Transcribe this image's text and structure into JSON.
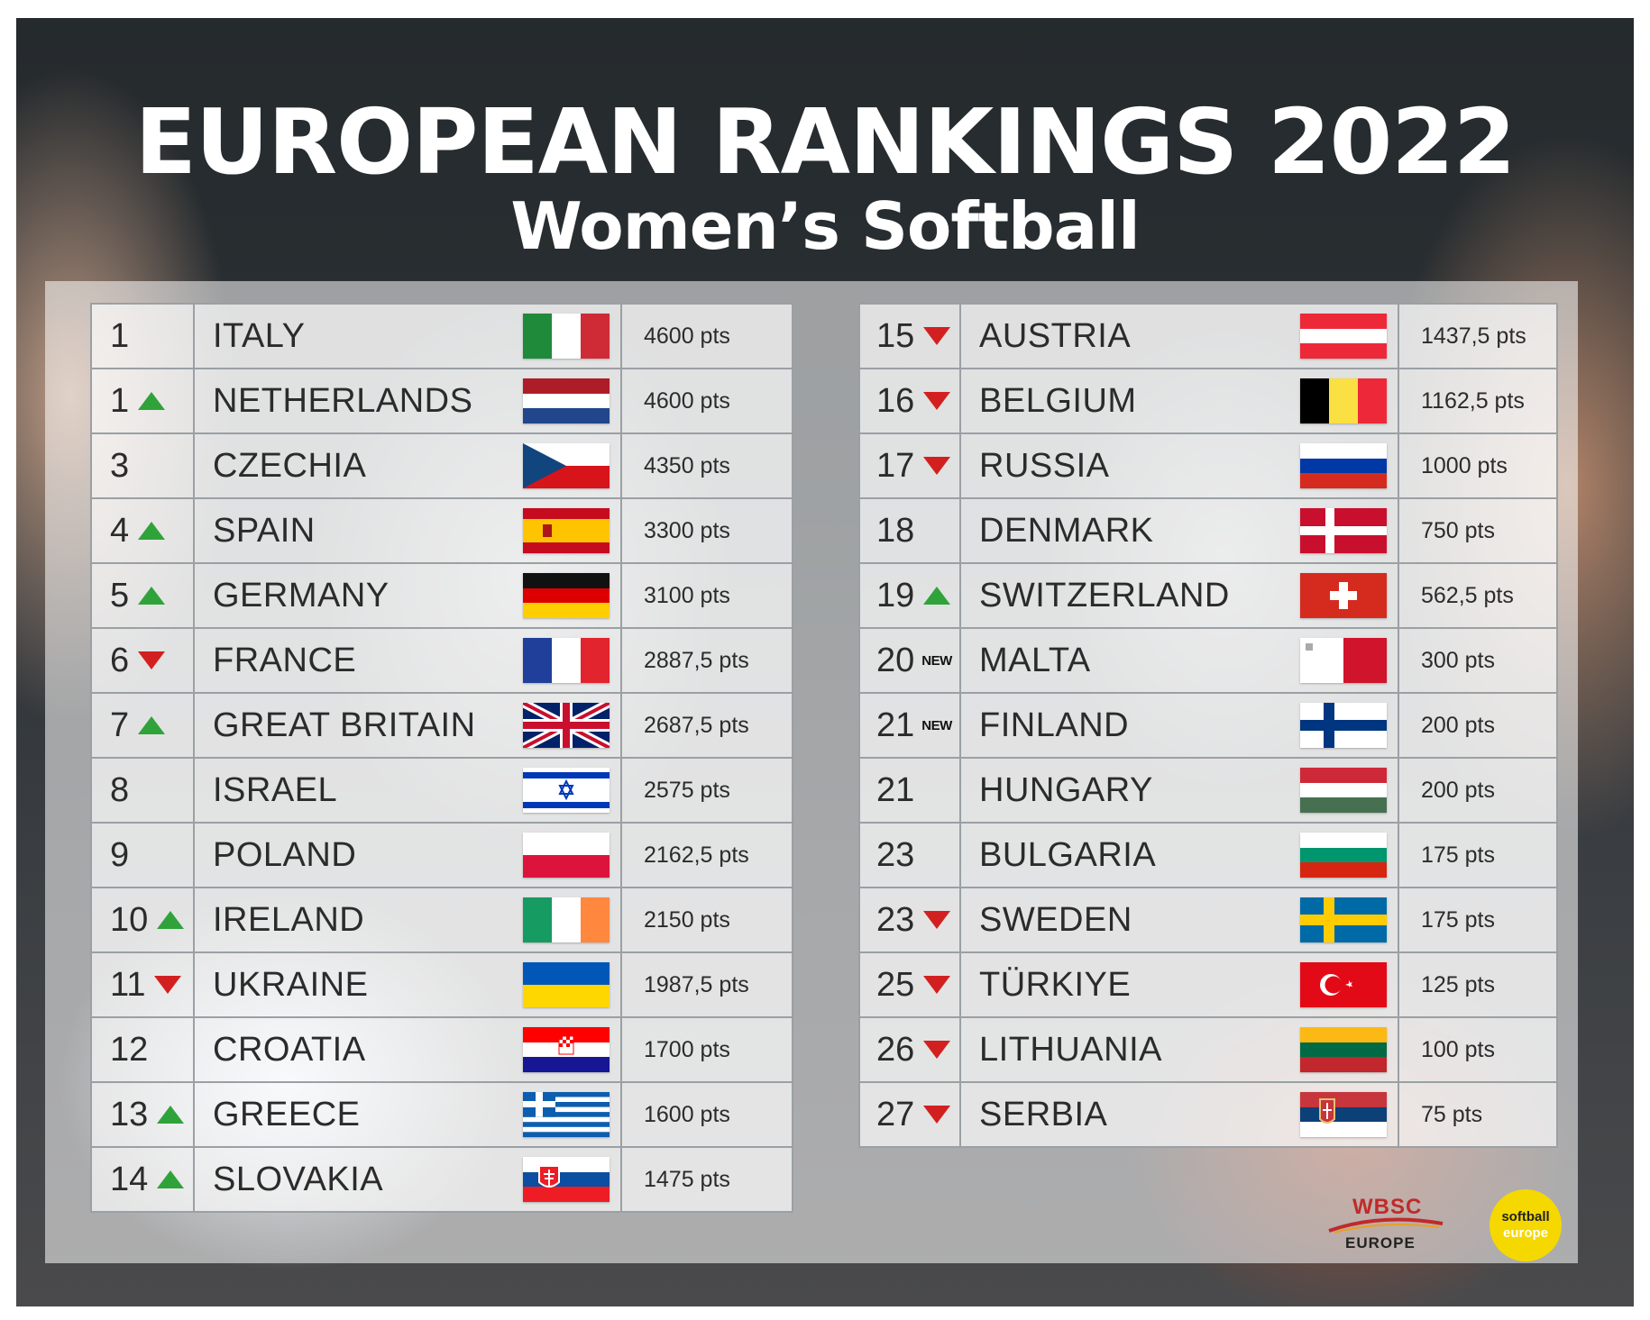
{
  "title": "EUROPEAN RANKINGS 2022",
  "subtitle": "Women’s Softball",
  "colors": {
    "up": "#2fa33a",
    "down": "#d22020"
  },
  "left_table": [
    {
      "rank": "1",
      "change": "none",
      "country": "ITALY",
      "flag": "italy-flag",
      "points": "4600 pts"
    },
    {
      "rank": "1",
      "change": "up",
      "country": "NETHERLANDS",
      "flag": "netherlands-flag",
      "points": "4600 pts"
    },
    {
      "rank": "3",
      "change": "none",
      "country": "CZECHIA",
      "flag": "czechia-flag",
      "points": "4350 pts"
    },
    {
      "rank": "4",
      "change": "up",
      "country": "SPAIN",
      "flag": "spain-flag",
      "points": "3300 pts"
    },
    {
      "rank": "5",
      "change": "up",
      "country": "GERMANY",
      "flag": "germany-flag",
      "points": "3100 pts"
    },
    {
      "rank": "6",
      "change": "down",
      "country": "FRANCE",
      "flag": "france-flag",
      "points": "2887,5 pts"
    },
    {
      "rank": "7",
      "change": "up",
      "country": "GREAT BRITAIN",
      "flag": "great-britain-flag",
      "points": "2687,5 pts"
    },
    {
      "rank": "8",
      "change": "none",
      "country": "ISRAEL",
      "flag": "israel-flag",
      "points": "2575 pts"
    },
    {
      "rank": "9",
      "change": "none",
      "country": "POLAND",
      "flag": "poland-flag",
      "points": "2162,5 pts"
    },
    {
      "rank": "10",
      "change": "up",
      "country": "IRELAND",
      "flag": "ireland-flag",
      "points": "2150 pts"
    },
    {
      "rank": "11",
      "change": "down",
      "country": "UKRAINE",
      "flag": "ukraine-flag",
      "points": "1987,5 pts"
    },
    {
      "rank": "12",
      "change": "none",
      "country": "CROATIA",
      "flag": "croatia-flag",
      "points": "1700 pts"
    },
    {
      "rank": "13",
      "change": "up",
      "country": "GREECE",
      "flag": "greece-flag",
      "points": "1600 pts"
    },
    {
      "rank": "14",
      "change": "up",
      "country": "SLOVAKIA",
      "flag": "slovakia-flag",
      "points": "1475 pts"
    }
  ],
  "right_table": [
    {
      "rank": "15",
      "change": "down",
      "country": "AUSTRIA",
      "flag": "austria-flag",
      "points": "1437,5 pts"
    },
    {
      "rank": "16",
      "change": "down",
      "country": "BELGIUM",
      "flag": "belgium-flag",
      "points": "1162,5 pts"
    },
    {
      "rank": "17",
      "change": "down",
      "country": "RUSSIA",
      "flag": "russia-flag",
      "points": "1000 pts"
    },
    {
      "rank": "18",
      "change": "none",
      "country": "DENMARK",
      "flag": "denmark-flag",
      "points": "750 pts"
    },
    {
      "rank": "19",
      "change": "up",
      "country": "SWITZERLAND",
      "flag": "switzerland-flag",
      "points": "562,5 pts"
    },
    {
      "rank": "20",
      "change": "new",
      "country": "MALTA",
      "flag": "malta-flag",
      "points": "300 pts"
    },
    {
      "rank": "21",
      "change": "new",
      "country": "FINLAND",
      "flag": "finland-flag",
      "points": "200 pts"
    },
    {
      "rank": "21",
      "change": "none",
      "country": "HUNGARY",
      "flag": "hungary-flag",
      "points": "200 pts"
    },
    {
      "rank": "23",
      "change": "none",
      "country": "BULGARIA",
      "flag": "bulgaria-flag",
      "points": "175 pts"
    },
    {
      "rank": "23",
      "change": "down",
      "country": "SWEDEN",
      "flag": "sweden-flag",
      "points": "175 pts"
    },
    {
      "rank": "25",
      "change": "down",
      "country": "TÜRKIYE",
      "flag": "turkiye-flag",
      "points": "125 pts"
    },
    {
      "rank": "26",
      "change": "down",
      "country": "LITHUANIA",
      "flag": "lithuania-flag",
      "points": "100 pts"
    },
    {
      "rank": "27",
      "change": "down",
      "country": "SERBIA",
      "flag": "serbia-flag",
      "points": "75 pts"
    }
  ],
  "new_label": "NEW",
  "logos": {
    "wbsc_top": "WBSC",
    "wbsc_bottom": "EUROPE",
    "softball_line1": "softball",
    "softball_line2": "europe"
  }
}
